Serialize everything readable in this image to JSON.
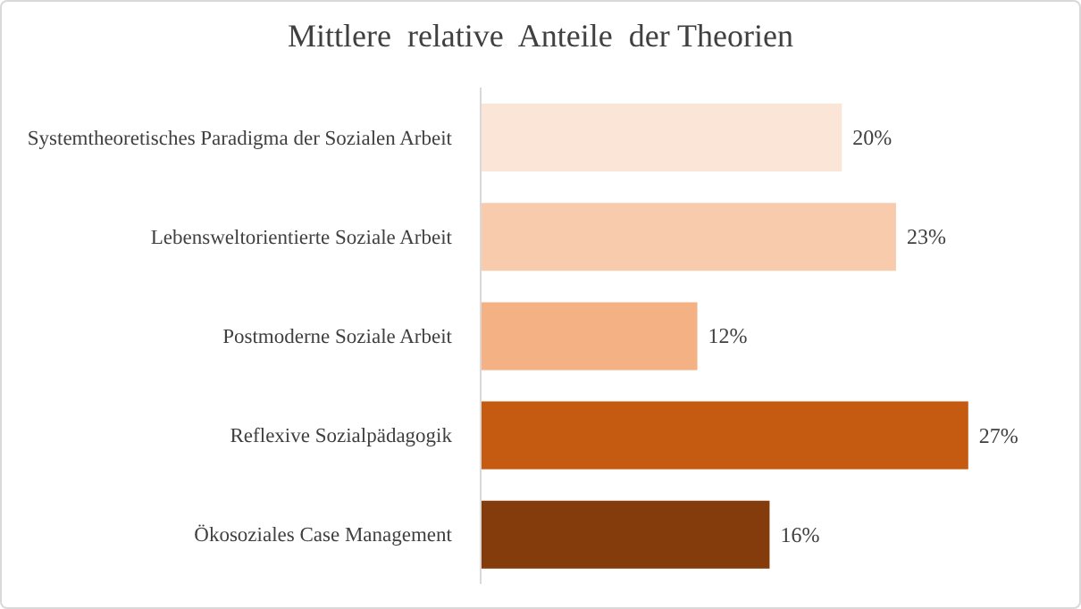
{
  "chart_data": {
    "type": "bar",
    "orientation": "horizontal",
    "title": "Mittlere  relative  Anteile  der Theorien",
    "categories": [
      "Systemtheoretisches Paradigma der Sozialen Arbeit",
      "Lebensweltorientierte Soziale Arbeit",
      "Postmoderne Soziale Arbeit",
      "Reflexive Sozialpädagogik",
      "Ökosoziales Case Management"
    ],
    "values": [
      20,
      23,
      12,
      27,
      16
    ],
    "colors": [
      "#fbe5d6",
      "#f8cbad",
      "#f4b183",
      "#c55a11",
      "#843c0c"
    ],
    "value_labels": [
      "20%",
      "23%",
      "12%",
      "27%",
      "16%"
    ]
  }
}
